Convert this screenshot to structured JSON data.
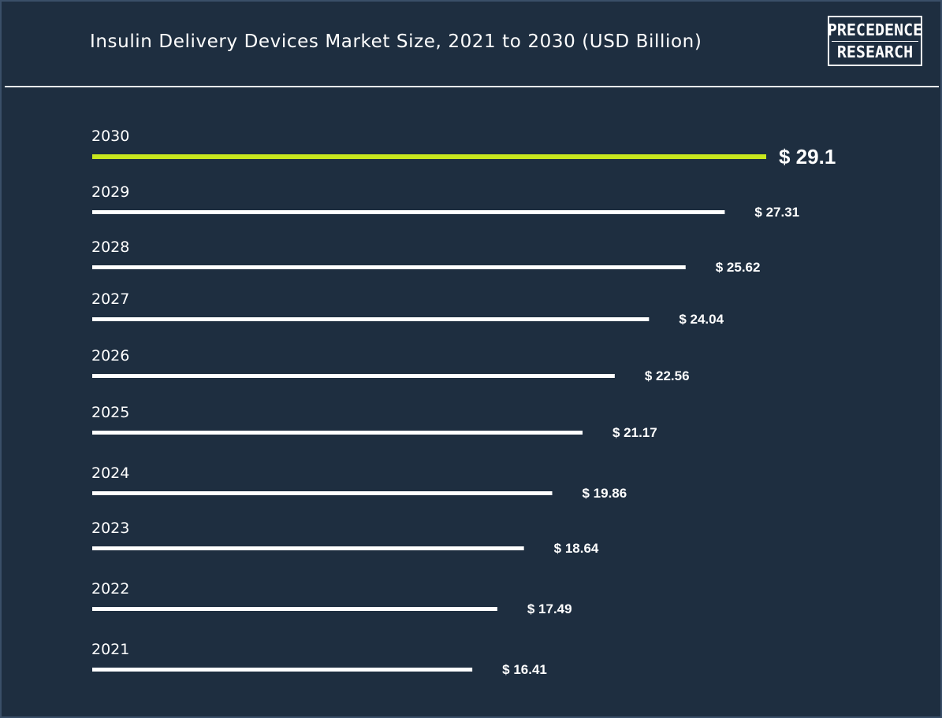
{
  "title": "Insulin Delivery Devices Market Size, 2021 to 2030 (USD Billion)",
  "logo": {
    "line1": "PRECEDENCE",
    "line2": "RESEARCH"
  },
  "colors": {
    "background": "#1e2e40",
    "bar": "#ffffff",
    "highlight": "#c8e61e"
  },
  "chart_data": {
    "type": "bar",
    "orientation": "horizontal",
    "title": "Insulin Delivery Devices Market Size, 2021 to 2030 (USD Billion)",
    "categories": [
      "2030",
      "2029",
      "2028",
      "2027",
      "2026",
      "2025",
      "2024",
      "2023",
      "2022",
      "2021"
    ],
    "values": [
      29.1,
      27.31,
      25.62,
      24.04,
      22.56,
      21.17,
      19.86,
      18.64,
      17.49,
      16.41
    ],
    "labels": [
      "$ 29.1",
      "$ 27.31",
      "$ 25.62",
      "$ 24.04",
      "$ 22.56",
      "$ 21.17",
      "$ 19.86",
      "$ 18.64",
      "$ 17.49",
      "$ 16.41"
    ],
    "highlight_category": "2030",
    "grid": false,
    "legend": "none"
  }
}
